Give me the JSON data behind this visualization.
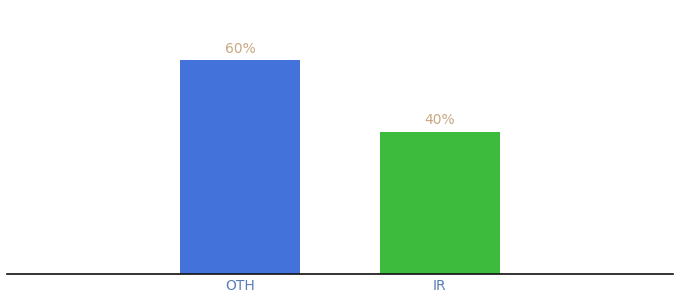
{
  "categories": [
    "OTH",
    "IR"
  ],
  "values": [
    60,
    40
  ],
  "bar_colors": [
    "#4472db",
    "#3dbb3d"
  ],
  "label_color": "#c8a882",
  "tick_color": "#5a7db5",
  "background_color": "#ffffff",
  "label_fontsize": 10,
  "tick_fontsize": 10,
  "bar_width": 0.18,
  "ylim": [
    0,
    75
  ],
  "xlim": [
    0.0,
    1.0
  ],
  "x_positions": [
    0.35,
    0.65
  ]
}
